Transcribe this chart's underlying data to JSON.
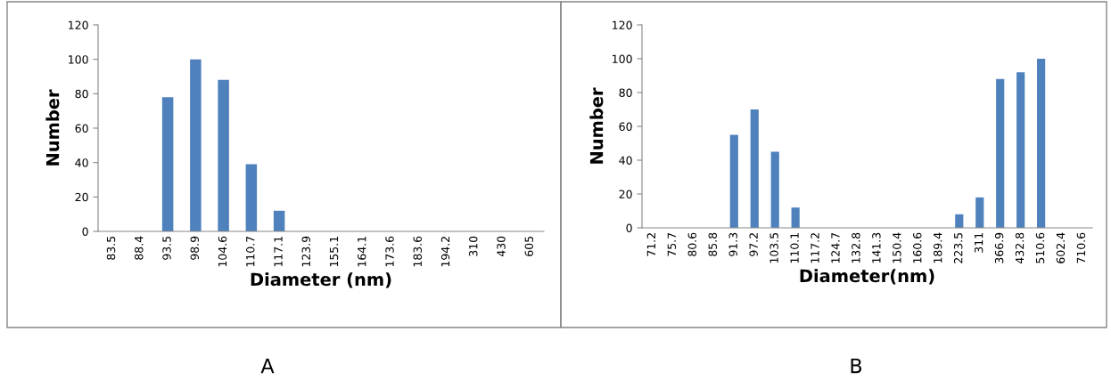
{
  "chart_data": [
    {
      "type": "bar",
      "xlabel": "Diameter (nm)",
      "ylabel": "Number",
      "categories": [
        "83.5",
        "88.4",
        "93.5",
        "98.9",
        "104.6",
        "110.7",
        "117.1",
        "123.9",
        "155.1",
        "164.1",
        "173.6",
        "183.6",
        "194.2",
        "310",
        "430",
        "605"
      ],
      "values": [
        0,
        0,
        78,
        100,
        88,
        39,
        12,
        0,
        0,
        0,
        0,
        0,
        0,
        0,
        0,
        0
      ],
      "color": "#4f81bd",
      "ylim": [
        0,
        120
      ],
      "yticks": [
        0,
        20,
        40,
        60,
        80,
        100,
        120
      ],
      "grid": false,
      "annotations": [
        "A"
      ]
    },
    {
      "type": "bar",
      "xlabel": "Diameter(nm)",
      "ylabel": "Number",
      "categories": [
        "71.2",
        "75.7",
        "80.6",
        "85.8",
        "91.3",
        "97.2",
        "103.5",
        "110.1",
        "117.2",
        "124.7",
        "132.8",
        "141.3",
        "150.4",
        "160.6",
        "189.4",
        "223.5",
        "311",
        "366.9",
        "432.8",
        "510.6",
        "602.4",
        "710.6"
      ],
      "values": [
        0,
        0,
        0,
        0,
        55,
        70,
        45,
        12,
        0,
        0,
        0,
        0,
        0,
        0,
        0,
        8,
        18,
        88,
        92,
        100,
        0,
        0
      ],
      "color": "#4f81bd",
      "ylim": [
        0,
        120
      ],
      "yticks": [
        0,
        20,
        40,
        60,
        80,
        100,
        120
      ],
      "grid": false,
      "annotations": [
        "B"
      ]
    }
  ]
}
